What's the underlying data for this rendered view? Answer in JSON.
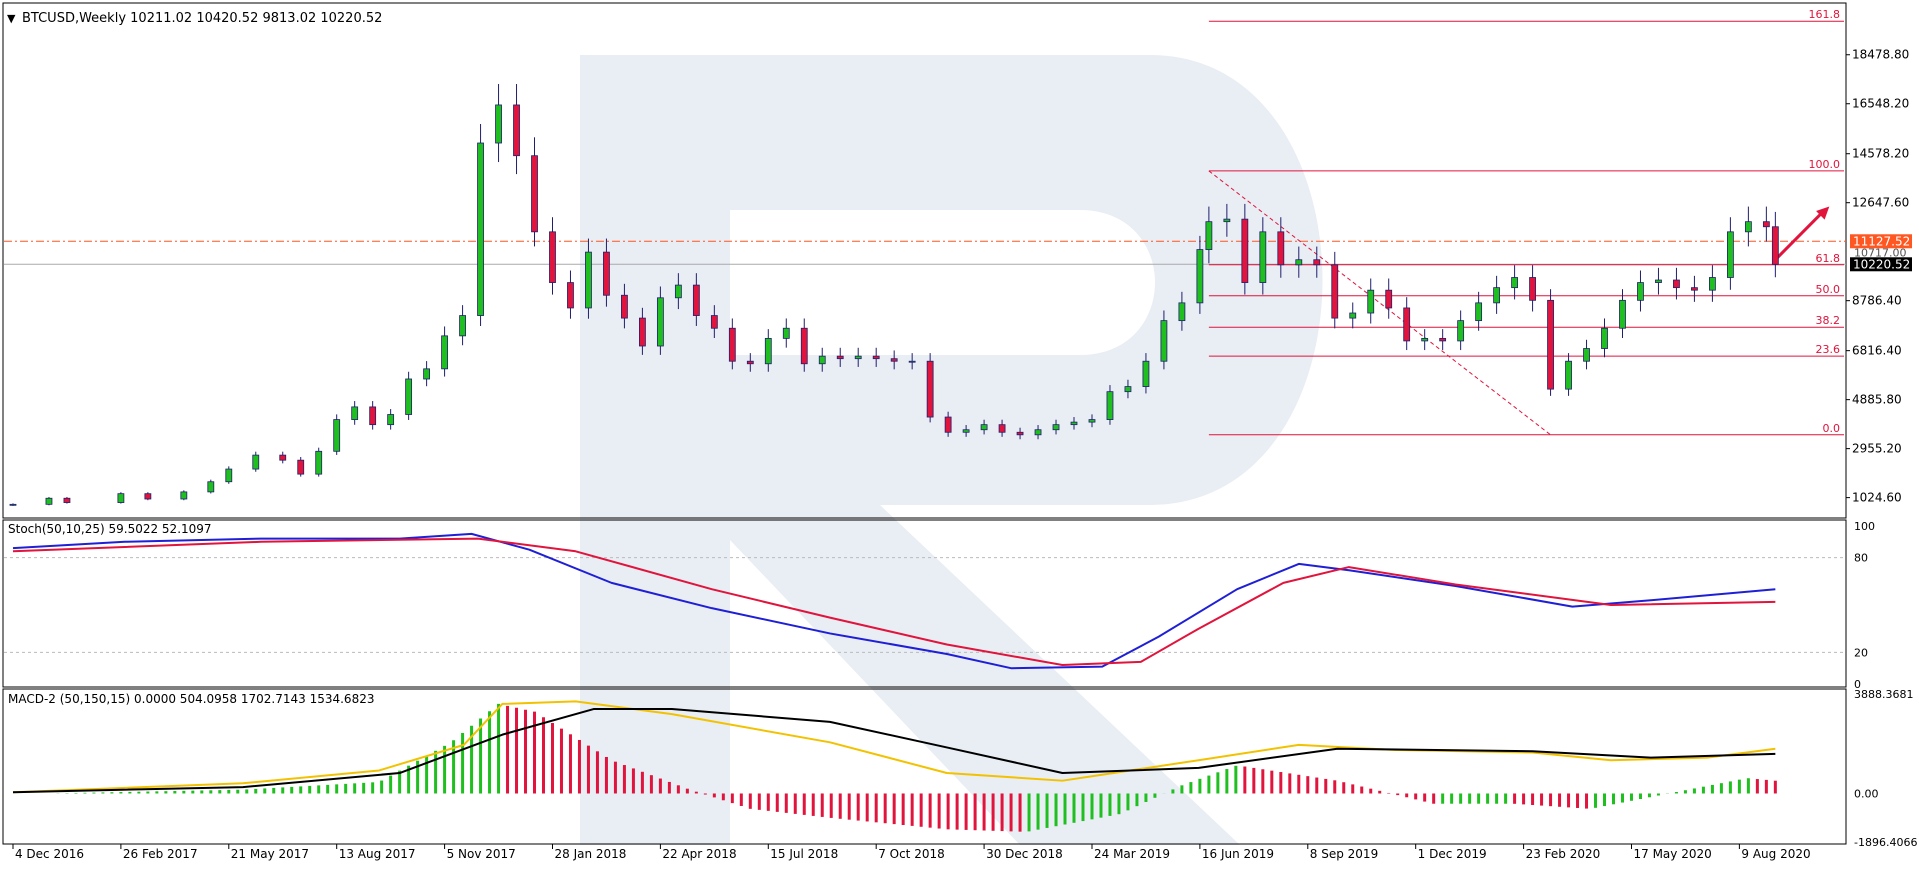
{
  "header": {
    "symbol": "BTCUSD",
    "timeframe": "Weekly",
    "ohlc": "10211.02 10420.52 9813.02 10220.52"
  },
  "colors": {
    "bull": "#1fbf1f",
    "bear": "#e0143c",
    "fib": "#e0143c",
    "ma_fast": "#1f1fd6",
    "ma_slow": "#e0143c",
    "macd_signal": "#f2c200",
    "macd_main": "#000000",
    "grid": "#b9b9b9",
    "watermark": "#e9edf4"
  },
  "chart_data": [
    {
      "type": "candlestick",
      "name": "price",
      "title": "BTCUSD,Weekly",
      "ohlc_text": "10211.02 10420.52 9813.02 10220.52",
      "y_ticks": [
        "18478.80",
        "16548.20",
        "14578.20",
        "12647.60",
        "8786.40",
        "6816.40",
        "4885.80",
        "2955.20",
        "1024.60"
      ],
      "ylim": [
        300,
        20400
      ],
      "price_labels": [
        {
          "value": 11127.52,
          "text": "11127.52",
          "color": "#ff5722"
        },
        {
          "value": 10220.52,
          "text": "10220.52",
          "color": "#000000"
        }
      ],
      "current_price_text": "10717.00",
      "fibonacci": {
        "levels": [
          {
            "label": "161.8",
            "value": 19800
          },
          {
            "label": "100.0",
            "value": 13900
          },
          {
            "label": "61.8",
            "value": 10200
          },
          {
            "label": "50.0",
            "value": 8980
          },
          {
            "label": "38.2",
            "value": 7740
          },
          {
            "label": "23.6",
            "value": 6600
          },
          {
            "label": "0.0",
            "value": 3500
          }
        ],
        "start_date": "2019-06-23",
        "trend_start": {
          "date": "2019-06-23",
          "value": 13900
        },
        "trend_end": {
          "date": "2020-03-15",
          "value": 3500
        }
      },
      "arrow": {
        "from": {
          "date": "2020-09-06",
          "value": 10400
        },
        "to": {
          "date": "2020-10-18",
          "value": 12500
        }
      },
      "x_ticks": [
        "4 Dec 2016",
        "26 Feb 2017",
        "21 May 2017",
        "13 Aug 2017",
        "5 Nov 2017",
        "28 Jan 2018",
        "22 Apr 2018",
        "15 Jul 2018",
        "7 Oct 2018",
        "30 Dec 2018",
        "24 Mar 2019",
        "16 Jun 2019",
        "8 Sep 2019",
        "1 Dec 2019",
        "23 Feb 2020",
        "17 May 2020",
        "9 Aug 2020"
      ],
      "x_range": [
        "2016-11-27",
        "2020-10-31"
      ],
      "series": [
        {
          "date": "2016-12-04",
          "close": 760
        },
        {
          "date": "2017-01-01",
          "close": 1000
        },
        {
          "date": "2017-01-15",
          "close": 830
        },
        {
          "date": "2017-02-26",
          "close": 1180
        },
        {
          "date": "2017-03-19",
          "close": 970
        },
        {
          "date": "2017-04-16",
          "close": 1250
        },
        {
          "date": "2017-05-07",
          "close": 1650
        },
        {
          "date": "2017-05-21",
          "close": 2150
        },
        {
          "date": "2017-06-11",
          "close": 2700
        },
        {
          "date": "2017-07-02",
          "close": 2500
        },
        {
          "date": "2017-07-16",
          "close": 1950
        },
        {
          "date": "2017-07-30",
          "close": 2850
        },
        {
          "date": "2017-08-13",
          "close": 4100
        },
        {
          "date": "2017-08-27",
          "close": 4600
        },
        {
          "date": "2017-09-10",
          "close": 3900
        },
        {
          "date": "2017-09-24",
          "close": 4300
        },
        {
          "date": "2017-10-08",
          "close": 5700
        },
        {
          "date": "2017-10-22",
          "close": 6100
        },
        {
          "date": "2017-11-05",
          "close": 7400
        },
        {
          "date": "2017-11-19",
          "close": 8200
        },
        {
          "date": "2017-12-03",
          "close": 15000
        },
        {
          "date": "2017-12-17",
          "close": 16500
        },
        {
          "date": "2017-12-31",
          "close": 14500
        },
        {
          "date": "2018-01-14",
          "close": 11500
        },
        {
          "date": "2018-01-28",
          "close": 9500
        },
        {
          "date": "2018-02-11",
          "close": 8500
        },
        {
          "date": "2018-02-25",
          "close": 10700
        },
        {
          "date": "2018-03-11",
          "close": 9000
        },
        {
          "date": "2018-03-25",
          "close": 8100
        },
        {
          "date": "2018-04-08",
          "close": 7000
        },
        {
          "date": "2018-04-22",
          "close": 8900
        },
        {
          "date": "2018-05-06",
          "close": 9400
        },
        {
          "date": "2018-05-20",
          "close": 8200
        },
        {
          "date": "2018-06-03",
          "close": 7700
        },
        {
          "date": "2018-06-17",
          "close": 6400
        },
        {
          "date": "2018-07-01",
          "close": 6300
        },
        {
          "date": "2018-07-15",
          "close": 7300
        },
        {
          "date": "2018-07-29",
          "close": 7700
        },
        {
          "date": "2018-08-12",
          "close": 6300
        },
        {
          "date": "2018-08-26",
          "close": 6600
        },
        {
          "date": "2018-09-09",
          "close": 6500
        },
        {
          "date": "2018-09-23",
          "close": 6600
        },
        {
          "date": "2018-10-07",
          "close": 6500
        },
        {
          "date": "2018-10-21",
          "close": 6400
        },
        {
          "date": "2018-11-04",
          "close": 6400
        },
        {
          "date": "2018-11-18",
          "close": 4200
        },
        {
          "date": "2018-12-02",
          "close": 3600
        },
        {
          "date": "2018-12-16",
          "close": 3700
        },
        {
          "date": "2018-12-30",
          "close": 3900
        },
        {
          "date": "2019-01-13",
          "close": 3600
        },
        {
          "date": "2019-01-27",
          "close": 3500
        },
        {
          "date": "2019-02-10",
          "close": 3700
        },
        {
          "date": "2019-02-24",
          "close": 3900
        },
        {
          "date": "2019-03-10",
          "close": 4000
        },
        {
          "date": "2019-03-24",
          "close": 4100
        },
        {
          "date": "2019-04-07",
          "close": 5200
        },
        {
          "date": "2019-04-21",
          "close": 5400
        },
        {
          "date": "2019-05-05",
          "close": 6400
        },
        {
          "date": "2019-05-19",
          "close": 8000
        },
        {
          "date": "2019-06-02",
          "close": 8700
        },
        {
          "date": "2019-06-16",
          "close": 10800
        },
        {
          "date": "2019-06-23",
          "close": 11900
        },
        {
          "date": "2019-07-07",
          "close": 12000
        },
        {
          "date": "2019-07-21",
          "close": 9500
        },
        {
          "date": "2019-08-04",
          "close": 11500
        },
        {
          "date": "2019-08-18",
          "close": 10200
        },
        {
          "date": "2019-09-01",
          "close": 10400
        },
        {
          "date": "2019-09-15",
          "close": 10200
        },
        {
          "date": "2019-09-29",
          "close": 8100
        },
        {
          "date": "2019-10-13",
          "close": 8300
        },
        {
          "date": "2019-10-27",
          "close": 9200
        },
        {
          "date": "2019-11-10",
          "close": 8500
        },
        {
          "date": "2019-11-24",
          "close": 7200
        },
        {
          "date": "2019-12-08",
          "close": 7300
        },
        {
          "date": "2019-12-22",
          "close": 7200
        },
        {
          "date": "2020-01-05",
          "close": 8000
        },
        {
          "date": "2020-01-19",
          "close": 8700
        },
        {
          "date": "2020-02-02",
          "close": 9300
        },
        {
          "date": "2020-02-16",
          "close": 9700
        },
        {
          "date": "2020-03-01",
          "close": 8800
        },
        {
          "date": "2020-03-15",
          "close": 5300
        },
        {
          "date": "2020-03-29",
          "close": 6400
        },
        {
          "date": "2020-04-12",
          "close": 6900
        },
        {
          "date": "2020-04-26",
          "close": 7700
        },
        {
          "date": "2020-05-10",
          "close": 8800
        },
        {
          "date": "2020-05-24",
          "close": 9500
        },
        {
          "date": "2020-06-07",
          "close": 9600
        },
        {
          "date": "2020-06-21",
          "close": 9300
        },
        {
          "date": "2020-07-05",
          "close": 9200
        },
        {
          "date": "2020-07-19",
          "close": 9700
        },
        {
          "date": "2020-08-02",
          "close": 11500
        },
        {
          "date": "2020-08-16",
          "close": 11900
        },
        {
          "date": "2020-08-30",
          "close": 11700
        },
        {
          "date": "2020-09-06",
          "close": 10220
        }
      ]
    },
    {
      "type": "line",
      "name": "stochastic",
      "title": "Stoch(50,10,25) 59.5022 52.1097",
      "ylim": [
        0,
        100
      ],
      "y_ticks": [
        "100",
        "80",
        "20",
        "0"
      ],
      "levels": [
        80,
        20
      ],
      "series": [
        {
          "color": "#1f1fd6",
          "points": [
            [
              "2016-12-04",
              86
            ],
            [
              "2017-03-01",
              90
            ],
            [
              "2017-06-15",
              92
            ],
            [
              "2017-10-01",
              92
            ],
            [
              "2017-11-26",
              95
            ],
            [
              "2018-01-10",
              85
            ],
            [
              "2018-03-15",
              64
            ],
            [
              "2018-06-01",
              48
            ],
            [
              "2018-09-01",
              32
            ],
            [
              "2018-12-01",
              19
            ],
            [
              "2019-01-20",
              10
            ],
            [
              "2019-04-01",
              11
            ],
            [
              "2019-05-15",
              30
            ],
            [
              "2019-07-15",
              60
            ],
            [
              "2019-09-01",
              76
            ],
            [
              "2019-10-10",
              72
            ],
            [
              "2020-01-01",
              62
            ],
            [
              "2020-04-01",
              49
            ],
            [
              "2020-06-01",
              53
            ],
            [
              "2020-09-06",
              60
            ]
          ]
        },
        {
          "color": "#e0143c",
          "points": [
            [
              "2016-12-04",
              84
            ],
            [
              "2017-06-15",
              90
            ],
            [
              "2017-12-01",
              92
            ],
            [
              "2018-02-15",
              84
            ],
            [
              "2018-06-01",
              60
            ],
            [
              "2018-09-01",
              42
            ],
            [
              "2018-12-01",
              25
            ],
            [
              "2019-03-01",
              12
            ],
            [
              "2019-05-01",
              14
            ],
            [
              "2019-06-15",
              35
            ],
            [
              "2019-08-20",
              64
            ],
            [
              "2019-10-10",
              74
            ],
            [
              "2020-01-01",
              63
            ],
            [
              "2020-05-01",
              50
            ],
            [
              "2020-09-06",
              52
            ]
          ]
        }
      ]
    },
    {
      "type": "bar+line",
      "name": "macd",
      "title": "MACD-2 (50,150,15) 0.0000 504.0958 1702.7143 1534.6823",
      "ylim": [
        -1896.4066,
        3888.3681
      ],
      "y_ticks": [
        "3888.3681",
        "0.00",
        "-1896.4066"
      ],
      "histogram": [
        [
          "2017-01-01",
          0
        ],
        [
          "2017-06-01",
          150
        ],
        [
          "2017-09-15",
          450
        ],
        [
          "2017-11-10",
          2000
        ],
        [
          "2017-12-17",
          3500
        ],
        [
          "2018-01-14",
          3200
        ],
        [
          "2018-03-15",
          1300
        ],
        [
          "2018-05-15",
          150
        ],
        [
          "2018-07-01",
          -600
        ],
        [
          "2018-09-01",
          -950
        ],
        [
          "2018-12-01",
          -1400
        ],
        [
          "2019-02-01",
          -1500
        ],
        [
          "2019-04-15",
          -800
        ],
        [
          "2019-06-01",
          300
        ],
        [
          "2019-07-15",
          1100
        ],
        [
          "2019-10-01",
          500
        ],
        [
          "2019-12-15",
          -400
        ],
        [
          "2020-02-15",
          -400
        ],
        [
          "2020-04-15",
          -600
        ],
        [
          "2020-06-15",
          0
        ],
        [
          "2020-08-15",
          600
        ],
        [
          "2020-09-06",
          500
        ]
      ],
      "series": [
        {
          "color": "#f2c200",
          "points": [
            [
              "2016-12-04",
              50
            ],
            [
              "2017-06-01",
              400
            ],
            [
              "2017-09-15",
              900
            ],
            [
              "2017-11-20",
              1900
            ],
            [
              "2017-12-20",
              3500
            ],
            [
              "2018-02-15",
              3600
            ],
            [
              "2018-05-01",
              3100
            ],
            [
              "2018-09-01",
              2000
            ],
            [
              "2018-12-01",
              800
            ],
            [
              "2019-03-01",
              500
            ],
            [
              "2019-06-15",
              1300
            ],
            [
              "2019-09-01",
              1900
            ],
            [
              "2019-11-15",
              1700
            ],
            [
              "2020-03-01",
              1600
            ],
            [
              "2020-05-01",
              1300
            ],
            [
              "2020-07-15",
              1400
            ],
            [
              "2020-09-06",
              1750
            ]
          ]
        },
        {
          "color": "#000000",
          "points": [
            [
              "2016-12-04",
              50
            ],
            [
              "2017-06-01",
              250
            ],
            [
              "2017-10-01",
              800
            ],
            [
              "2017-12-20",
              2300
            ],
            [
              "2018-03-01",
              3300
            ],
            [
              "2018-05-01",
              3300
            ],
            [
              "2018-09-01",
              2800
            ],
            [
              "2018-12-01",
              1800
            ],
            [
              "2019-03-01",
              800
            ],
            [
              "2019-06-15",
              1000
            ],
            [
              "2019-10-01",
              1750
            ],
            [
              "2020-03-01",
              1650
            ],
            [
              "2020-06-01",
              1400
            ],
            [
              "2020-09-06",
              1550
            ]
          ]
        }
      ]
    }
  ]
}
